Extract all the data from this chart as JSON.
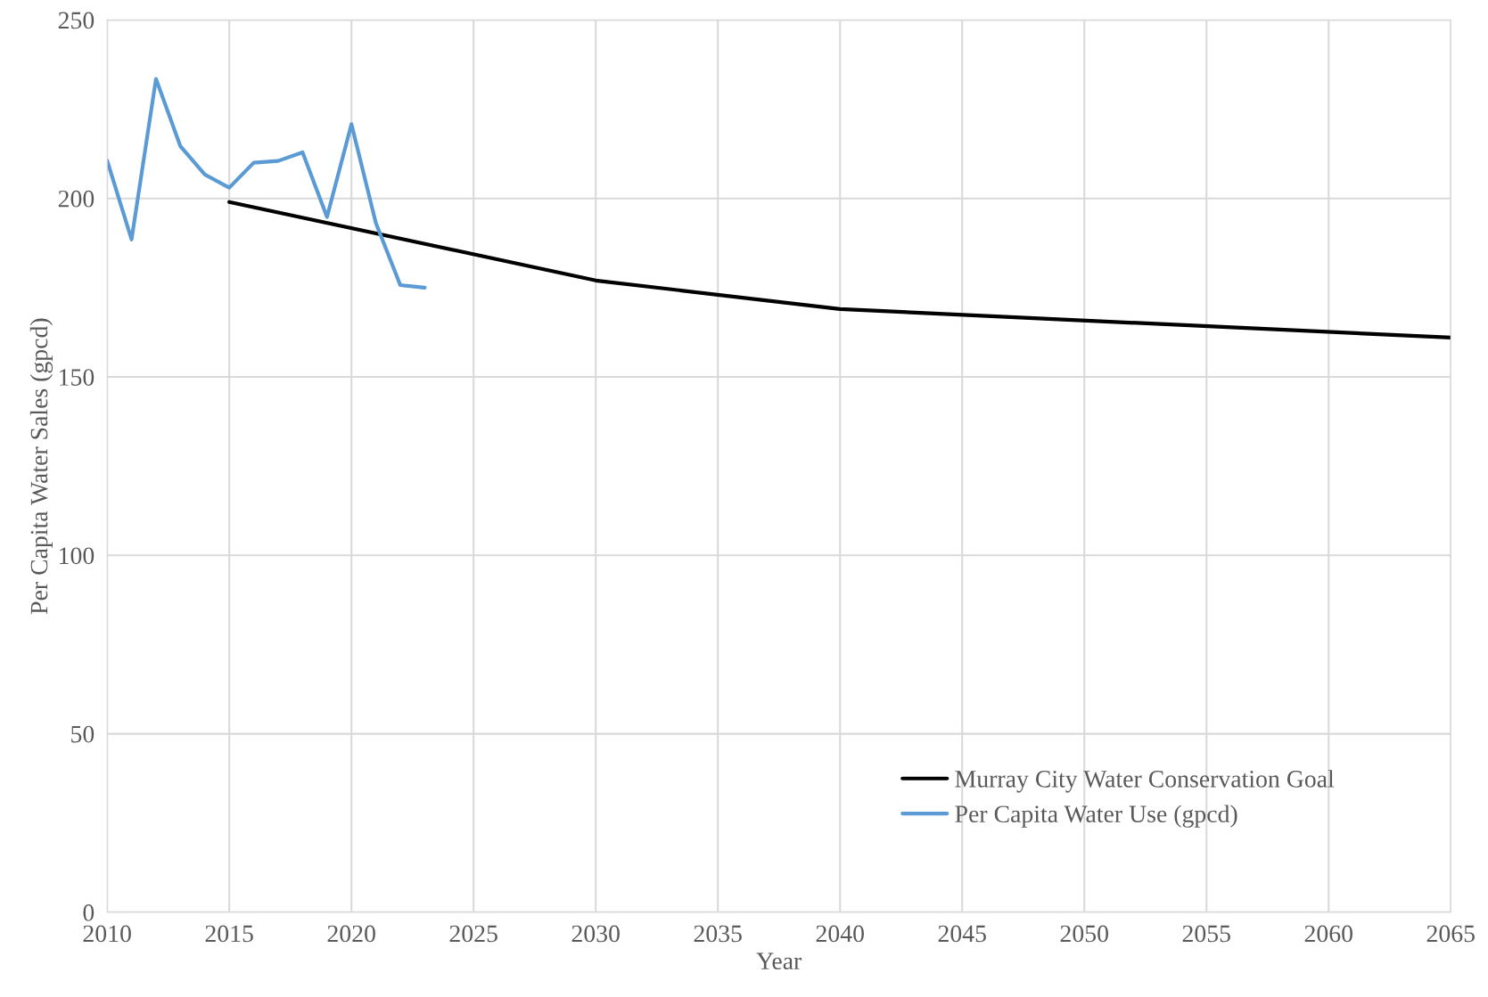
{
  "chart_data": {
    "type": "line",
    "xlabel": "Year",
    "ylabel": "Per Capita Water Sales (gpcd)",
    "xlim": [
      2010,
      2065
    ],
    "xticks": [
      2010,
      2015,
      2020,
      2025,
      2030,
      2035,
      2040,
      2045,
      2050,
      2055,
      2060,
      2065
    ],
    "ylim": [
      0,
      250
    ],
    "yticks": [
      0,
      50,
      100,
      150,
      200,
      250
    ],
    "grid": true,
    "legend": "bottom right",
    "series": [
      {
        "name": "Murray City Water Conservation Goal",
        "color": "#000000",
        "x": [
          2015,
          2030,
          2040,
          2065
        ],
        "values": [
          199,
          177,
          169,
          161
        ]
      },
      {
        "name": "Per Capita Water Use (gpcd)",
        "color": "#5b9bd5",
        "x": [
          2010,
          2011,
          2012,
          2013,
          2014,
          2015,
          2016,
          2017,
          2018,
          2019,
          2020,
          2021,
          2022,
          2023
        ],
        "values": [
          210.6,
          188.5,
          233.5,
          214.6,
          206.7,
          203.0,
          210.0,
          210.5,
          212.9,
          194.8,
          220.8,
          193.1,
          175.7,
          175.0
        ]
      }
    ]
  }
}
